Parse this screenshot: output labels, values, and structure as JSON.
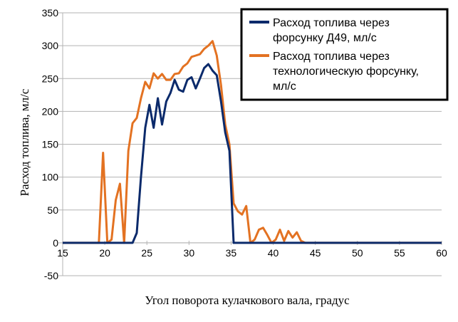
{
  "chart_data": {
    "type": "line",
    "xlabel": "Угол поворота кулачкового вала, градус",
    "ylabel": "Расход топлива, мл/с",
    "xlim": [
      15,
      60
    ],
    "ylim": [
      -50,
      350
    ],
    "x_ticks": [
      "15",
      "20",
      "25",
      "30",
      "35",
      "40",
      "45",
      "50",
      "55",
      "60"
    ],
    "y_ticks": [
      "-50",
      "0",
      "50",
      "100",
      "150",
      "200",
      "250",
      "300",
      "350"
    ],
    "grid": "horizontal",
    "legend_position": "top-right",
    "series": [
      {
        "name": "Расход топлива через форсунку Д49, мл/с",
        "color": "#0b2a6b",
        "points": [
          [
            15,
            0
          ],
          [
            23.3,
            0
          ],
          [
            23.8,
            15
          ],
          [
            24.3,
            100
          ],
          [
            24.8,
            175
          ],
          [
            25.3,
            210
          ],
          [
            25.8,
            175
          ],
          [
            26.3,
            220
          ],
          [
            26.8,
            180
          ],
          [
            27.3,
            215
          ],
          [
            27.8,
            228
          ],
          [
            28.3,
            248
          ],
          [
            28.8,
            233
          ],
          [
            29.3,
            230
          ],
          [
            29.8,
            248
          ],
          [
            30.3,
            252
          ],
          [
            30.8,
            235
          ],
          [
            31.3,
            250
          ],
          [
            31.8,
            266
          ],
          [
            32.3,
            272
          ],
          [
            32.8,
            262
          ],
          [
            33.3,
            255
          ],
          [
            33.8,
            215
          ],
          [
            34.3,
            168
          ],
          [
            34.8,
            140
          ],
          [
            35.3,
            0
          ],
          [
            60,
            0
          ]
        ]
      },
      {
        "name": "Расход топлива через технологическую форсунку, мл/с",
        "color": "#e37222",
        "points": [
          [
            15,
            0
          ],
          [
            19.3,
            0
          ],
          [
            19.8,
            137
          ],
          [
            20.3,
            0
          ],
          [
            20.8,
            5
          ],
          [
            21.3,
            65
          ],
          [
            21.8,
            90
          ],
          [
            22.3,
            0
          ],
          [
            22.8,
            140
          ],
          [
            23.3,
            182
          ],
          [
            23.8,
            190
          ],
          [
            24.3,
            220
          ],
          [
            24.8,
            245
          ],
          [
            25.3,
            235
          ],
          [
            25.8,
            258
          ],
          [
            26.3,
            250
          ],
          [
            26.8,
            257
          ],
          [
            27.3,
            248
          ],
          [
            27.8,
            248
          ],
          [
            28.3,
            257
          ],
          [
            28.8,
            258
          ],
          [
            29.3,
            268
          ],
          [
            29.8,
            273
          ],
          [
            30.3,
            283
          ],
          [
            30.8,
            285
          ],
          [
            31.3,
            287
          ],
          [
            31.8,
            295
          ],
          [
            32.3,
            300
          ],
          [
            32.8,
            307
          ],
          [
            33.3,
            285
          ],
          [
            33.8,
            240
          ],
          [
            34.3,
            180
          ],
          [
            34.8,
            150
          ],
          [
            35.3,
            60
          ],
          [
            35.8,
            48
          ],
          [
            36.3,
            43
          ],
          [
            36.8,
            56
          ],
          [
            37.3,
            0
          ],
          [
            37.8,
            5
          ],
          [
            38.3,
            20
          ],
          [
            38.8,
            23
          ],
          [
            39.3,
            12
          ],
          [
            39.8,
            0
          ],
          [
            40.3,
            5
          ],
          [
            40.8,
            20
          ],
          [
            41.3,
            3
          ],
          [
            41.8,
            18
          ],
          [
            42.3,
            8
          ],
          [
            42.8,
            16
          ],
          [
            43.3,
            3
          ],
          [
            43.8,
            0
          ],
          [
            60,
            0
          ]
        ]
      }
    ]
  }
}
